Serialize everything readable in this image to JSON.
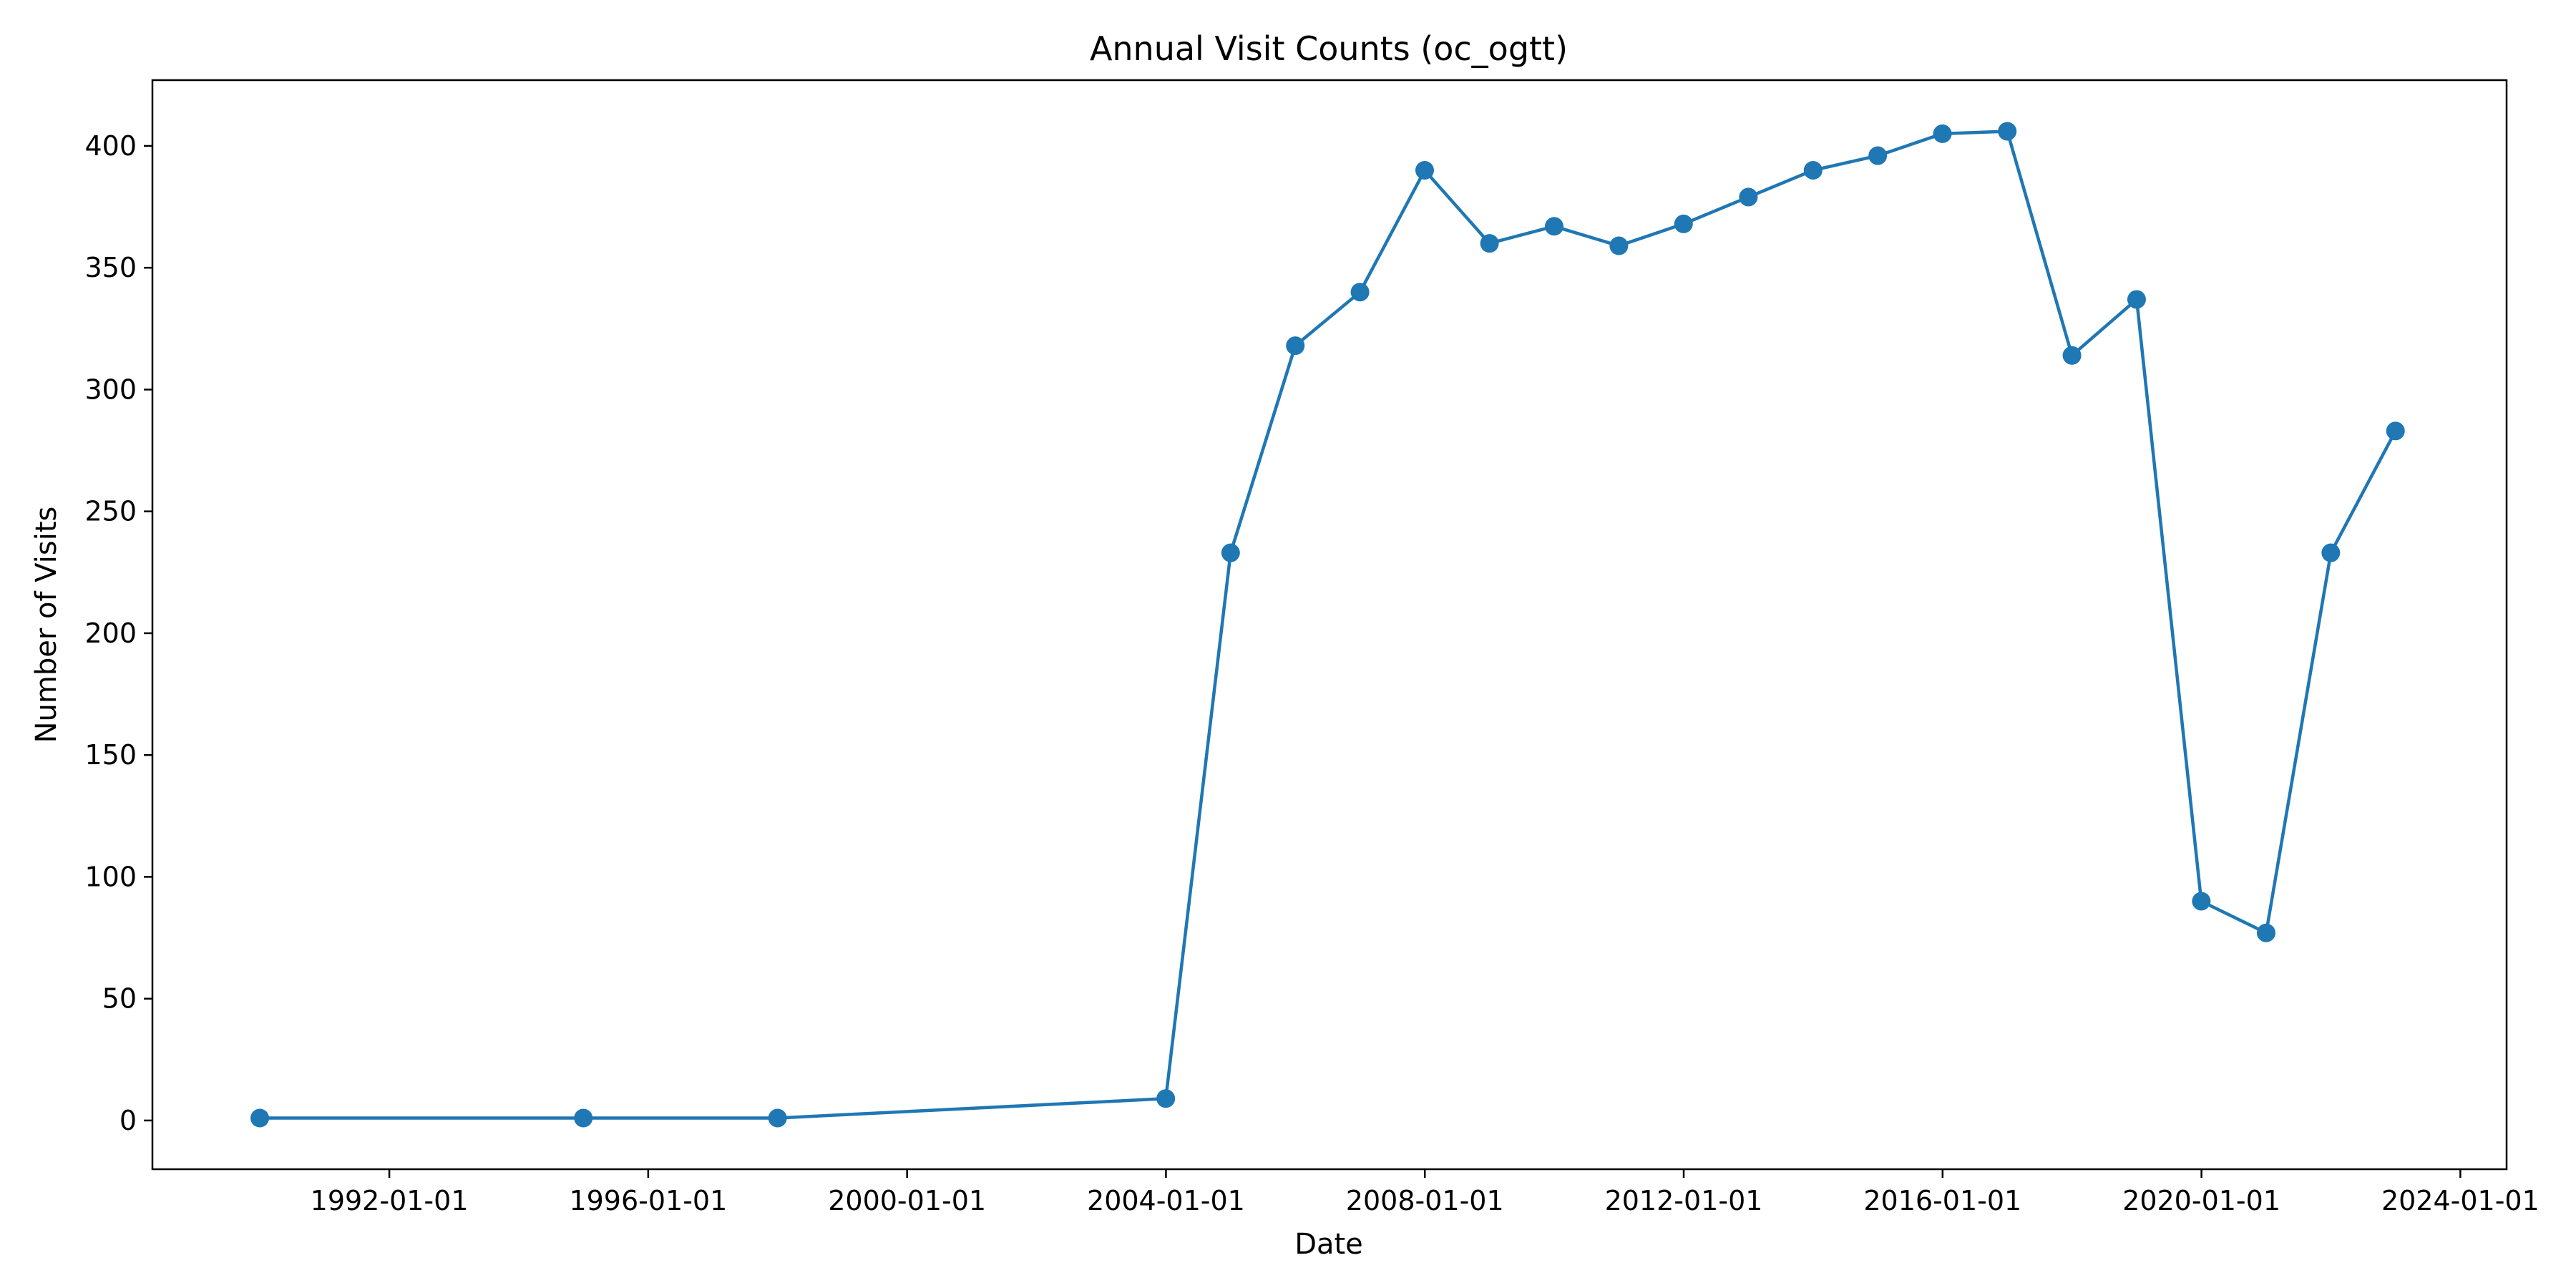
{
  "chart_data": {
    "type": "line",
    "title": "Annual Visit Counts (oc_ogtt)",
    "xlabel": "Date",
    "ylabel": "Number of Visits",
    "x_ticks": [
      "1992-01-01",
      "1996-01-01",
      "2000-01-01",
      "2004-01-01",
      "2008-01-01",
      "2012-01-01",
      "2016-01-01",
      "2020-01-01",
      "2024-01-01"
    ],
    "y_ticks": [
      0,
      50,
      100,
      150,
      200,
      250,
      300,
      350,
      400
    ],
    "xlim": [
      "1988-05-04",
      "2024-09-18"
    ],
    "ylim": [
      -20,
      427
    ],
    "grid": false,
    "colors": {
      "series": "#1f77b4"
    },
    "series": [
      {
        "points": [
          {
            "x": "1989-12-31",
            "y": 1
          },
          {
            "x": "1994-12-31",
            "y": 1
          },
          {
            "x": "1997-12-31",
            "y": 1
          },
          {
            "x": "2003-12-31",
            "y": 9
          },
          {
            "x": "2004-12-31",
            "y": 233
          },
          {
            "x": "2005-12-31",
            "y": 318
          },
          {
            "x": "2006-12-31",
            "y": 340
          },
          {
            "x": "2007-12-31",
            "y": 390
          },
          {
            "x": "2008-12-31",
            "y": 360
          },
          {
            "x": "2009-12-31",
            "y": 367
          },
          {
            "x": "2010-12-31",
            "y": 359
          },
          {
            "x": "2011-12-31",
            "y": 368
          },
          {
            "x": "2012-12-31",
            "y": 379
          },
          {
            "x": "2013-12-31",
            "y": 390
          },
          {
            "x": "2014-12-31",
            "y": 396
          },
          {
            "x": "2015-12-31",
            "y": 405
          },
          {
            "x": "2016-12-31",
            "y": 406
          },
          {
            "x": "2017-12-31",
            "y": 314
          },
          {
            "x": "2018-12-31",
            "y": 337
          },
          {
            "x": "2019-12-31",
            "y": 90
          },
          {
            "x": "2020-12-31",
            "y": 77
          },
          {
            "x": "2021-12-31",
            "y": 233
          },
          {
            "x": "2022-12-31",
            "y": 283
          }
        ]
      }
    ]
  }
}
